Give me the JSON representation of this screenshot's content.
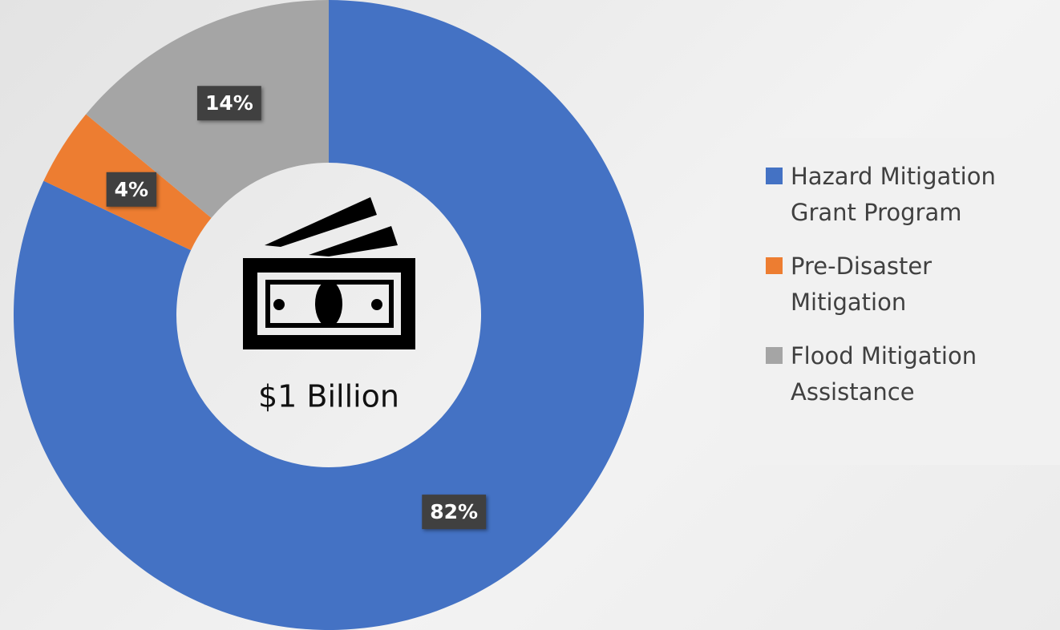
{
  "chart_data": {
    "type": "donut",
    "center_text": "$1 Billion",
    "categories": [
      "Hazard Mitigation Grant Program",
      "Pre-Disaster Mitigation",
      "Flood Mitigation Assistance"
    ],
    "values": [
      82,
      4,
      14
    ],
    "value_labels": [
      "82%",
      "4%",
      "14%"
    ],
    "colors": [
      "#4472c4",
      "#ed7d31",
      "#a5a5a5"
    ],
    "legend": "right"
  }
}
